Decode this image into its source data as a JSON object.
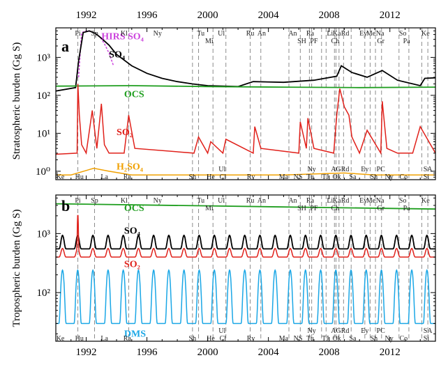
{
  "chart_data": [
    {
      "type": "line",
      "panel_label": "a",
      "ylabel": "Stratospheric burden (Gg S)",
      "yscale": "log",
      "ylim": [
        0.6,
        6000
      ],
      "xlim": [
        1990,
        2015
      ],
      "x_ticks": [
        "1992",
        "1996",
        "2000",
        "2004",
        "2008",
        "2012"
      ],
      "y_ticks": [
        "10⁰",
        "10¹",
        "10²",
        "10³"
      ],
      "series": [
        {
          "name": "HIRS SO₄",
          "color": "#cc44dd",
          "style": "dashed",
          "x": [
            1991.5,
            1991.7,
            1992.0,
            1992.3,
            1992.6,
            1992.9,
            1993.2,
            1993.5,
            1993.8
          ],
          "y": [
            300,
            4500,
            5000,
            4800,
            4300,
            3500,
            2300,
            1300,
            600
          ]
        },
        {
          "name": "SO₄",
          "color": "#000000",
          "x": [
            1990.0,
            1991.3,
            1991.5,
            1991.8,
            1992.2,
            1992.6,
            1993.0,
            1993.5,
            1994.0,
            1995.0,
            1996.0,
            1997.0,
            1998.0,
            1999.0,
            2000.0,
            2002.0,
            2003.0,
            2005.0,
            2007.0,
            2008.5,
            2008.8,
            2009.5,
            2010.5,
            2011.5,
            2012.5,
            2014.0,
            2014.3,
            2015.0
          ],
          "y": [
            130,
            160,
            800,
            4500,
            5000,
            4300,
            3200,
            2100,
            1200,
            600,
            380,
            280,
            230,
            200,
            180,
            170,
            230,
            220,
            250,
            320,
            600,
            400,
            300,
            450,
            250,
            180,
            280,
            290
          ]
        },
        {
          "name": "OCS",
          "color": "#1f9e1f",
          "x": [
            1990,
            1995,
            2000,
            2005,
            2010,
            2015
          ],
          "y": [
            175,
            180,
            170,
            165,
            160,
            165
          ]
        },
        {
          "name": "SO₂",
          "color": "#e0201a",
          "x": [
            1990,
            1991.4,
            1991.45,
            1991.55,
            1991.7,
            1992.0,
            1992.4,
            1992.7,
            1993.0,
            1993.2,
            1993.5,
            1994.5,
            1994.8,
            1995.2,
            1999.1,
            1999.4,
            2000.0,
            2000.2,
            2001.0,
            2001.2,
            2003.0,
            2003.1,
            2003.5,
            2006.0,
            2006.1,
            2006.5,
            2006.6,
            2007.0,
            2008.3,
            2008.5,
            2008.7,
            2009.0,
            2009.3,
            2009.5,
            2010.0,
            2010.5,
            2011.4,
            2011.5,
            2011.8,
            2012.5,
            2013.5,
            2014.0,
            2015.0
          ],
          "y": [
            2.8,
            3,
            200,
            30,
            5,
            3,
            40,
            4,
            60,
            5,
            3,
            3,
            30,
            4,
            3,
            8,
            3,
            6,
            3,
            7,
            3,
            15,
            4,
            3,
            20,
            4,
            25,
            4,
            3,
            30,
            150,
            50,
            30,
            8,
            3,
            12,
            3,
            70,
            4,
            3,
            3,
            15,
            3
          ]
        },
        {
          "name": "H₂SO₄",
          "color": "#f0a000",
          "x": [
            1990,
            1991,
            1992.5,
            1993.5,
            1995,
            2000,
            2005,
            2009,
            2011,
            2015
          ],
          "y": [
            0.8,
            0.8,
            1.2,
            1.0,
            0.8,
            0.8,
            0.8,
            0.9,
            0.8,
            0.8
          ]
        }
      ],
      "eruption_years": [
        1991.45,
        1992.55,
        1994.8,
        1999.0,
        1999.4,
        2000.35,
        2001.2,
        2002.8,
        2003.5,
        2005.35,
        2006.1,
        2006.7,
        2006.85,
        2007.5,
        2007.8,
        2008.35,
        2008.45,
        2008.65,
        2008.95,
        2009.45,
        2010.35,
        2010.7,
        2011.05,
        2011.45,
        2012.6,
        2013.25,
        2014.1,
        2014.5
      ],
      "top_labels": [
        {
          "text": "Pi",
          "x": 1991.45,
          "row": 1
        },
        {
          "text": "Sp",
          "x": 1992.55,
          "row": 1
        },
        {
          "text": "Kl",
          "x": 1994.5,
          "row": 1
        },
        {
          "text": "Ny",
          "x": 1996.7,
          "row": 1
        },
        {
          "text": "Tu",
          "x": 1999.55,
          "row": 1
        },
        {
          "text": "Mi",
          "x": 2000.1,
          "row": 2
        },
        {
          "text": "Ul",
          "x": 2000.9,
          "row": 1
        },
        {
          "text": "Ru",
          "x": 2002.8,
          "row": 1
        },
        {
          "text": "An",
          "x": 2003.55,
          "row": 1
        },
        {
          "text": "An",
          "x": 2005.6,
          "row": 1
        },
        {
          "text": "Ra",
          "x": 2006.75,
          "row": 1
        },
        {
          "text": "SH",
          "x": 2006.2,
          "row": 2
        },
        {
          "text": "PF",
          "x": 2007.0,
          "row": 2
        },
        {
          "text": "Li",
          "x": 2008.05,
          "row": 1
        },
        {
          "text": "Ka",
          "x": 2008.5,
          "row": 1
        },
        {
          "text": "Rd",
          "x": 2009.05,
          "row": 1
        },
        {
          "text": "Ch",
          "x": 2008.4,
          "row": 2
        },
        {
          "text": "Ey",
          "x": 2010.25,
          "row": 1
        },
        {
          "text": "Me",
          "x": 2010.75,
          "row": 1
        },
        {
          "text": "Na",
          "x": 2011.35,
          "row": 1
        },
        {
          "text": "Gr",
          "x": 2011.4,
          "row": 2
        },
        {
          "text": "So",
          "x": 2012.85,
          "row": 1
        },
        {
          "text": "Pa",
          "x": 2013.1,
          "row": 2
        },
        {
          "text": "Ke",
          "x": 2014.35,
          "row": 1
        }
      ],
      "bottom_labels": [
        {
          "text": "Ke",
          "x": 1990.3,
          "row": 2
        },
        {
          "text": "Hu",
          "x": 1991.55,
          "row": 2
        },
        {
          "text": "La",
          "x": 1993.2,
          "row": 2
        },
        {
          "text": "Ra",
          "x": 1994.7,
          "row": 2
        },
        {
          "text": "Sh",
          "x": 1999.0,
          "row": 2
        },
        {
          "text": "He",
          "x": 2000.2,
          "row": 2
        },
        {
          "text": "Ul",
          "x": 2000.95,
          "row": 1
        },
        {
          "text": "Cl",
          "x": 2001.0,
          "row": 2
        },
        {
          "text": "Rv",
          "x": 2002.85,
          "row": 2
        },
        {
          "text": "Ma",
          "x": 2005.0,
          "row": 2
        },
        {
          "text": "NS",
          "x": 2005.95,
          "row": 2
        },
        {
          "text": "Ny",
          "x": 2006.85,
          "row": 1
        },
        {
          "text": "Tu",
          "x": 2006.75,
          "row": 2
        },
        {
          "text": "TJ",
          "x": 2007.75,
          "row": 2
        },
        {
          "text": "AG",
          "x": 2008.45,
          "row": 1
        },
        {
          "text": "Ok",
          "x": 2008.5,
          "row": 2
        },
        {
          "text": "Rd",
          "x": 2009.05,
          "row": 1
        },
        {
          "text": "Sa",
          "x": 2009.55,
          "row": 2
        },
        {
          "text": "Ey",
          "x": 2010.35,
          "row": 1
        },
        {
          "text": "Sh",
          "x": 2010.95,
          "row": 2
        },
        {
          "text": "PC",
          "x": 2011.4,
          "row": 1
        },
        {
          "text": "Ny",
          "x": 2011.95,
          "row": 2
        },
        {
          "text": "Co",
          "x": 2012.9,
          "row": 2
        },
        {
          "text": "SA",
          "x": 2014.5,
          "row": 1
        },
        {
          "text": "Si",
          "x": 2014.4,
          "row": 2
        }
      ],
      "series_labels": [
        {
          "text": "HIRS SO₄",
          "color": "#cc44dd",
          "x": 1993.0,
          "y": 3000
        },
        {
          "text": "SO₄",
          "color": "#000000",
          "x": 1993.5,
          "y": 1000
        },
        {
          "text": "OCS",
          "color": "#1f9e1f",
          "x": 1994.5,
          "y": 90
        },
        {
          "text": "SO₂",
          "color": "#e0201a",
          "x": 1994.0,
          "y": 9
        },
        {
          "text": "H₂SO₄",
          "color": "#f0a000",
          "x": 1994.0,
          "y": 1.1
        }
      ]
    },
    {
      "type": "line",
      "panel_label": "b",
      "ylabel": "Tropospheric burden (Gg S)",
      "yscale": "log",
      "ylim": [
        15,
        4500
      ],
      "xlim": [
        1990,
        2015
      ],
      "x_ticks": [
        "1992",
        "1996",
        "2000",
        "2004",
        "2008",
        "2012"
      ],
      "y_ticks": [
        "10²",
        "10³"
      ],
      "series": [
        {
          "name": "OCS",
          "color": "#1f9e1f",
          "x": [
            1990,
            2015
          ],
          "y": [
            3200,
            2600
          ]
        },
        {
          "name": "SO₄",
          "color": "#000000",
          "seasonal": true,
          "x": [
            1990,
            2015
          ],
          "base": 550,
          "amp": 380
        },
        {
          "name": "SO₂",
          "color": "#e0201a",
          "seasonal": true,
          "x": [
            1990,
            2015
          ],
          "base": 400,
          "amp": 160,
          "spike": {
            "x": 1991.45,
            "y": 2100
          }
        },
        {
          "name": "DMS",
          "color": "#1aa7e6",
          "seasonal": true,
          "x": [
            1990,
            2015
          ],
          "base": 30,
          "amp": 210
        }
      ],
      "series_labels": [
        {
          "text": "OCS",
          "color": "#1f9e1f",
          "x": 1994.5,
          "y": 2400
        },
        {
          "text": "SO₄",
          "color": "#000000",
          "x": 1994.5,
          "y": 1000
        },
        {
          "text": "SO₂",
          "color": "#e0201a",
          "x": 1994.5,
          "y": 270
        },
        {
          "text": "DMS",
          "color": "#1aa7e6",
          "x": 1994.5,
          "y": 18
        }
      ]
    }
  ]
}
